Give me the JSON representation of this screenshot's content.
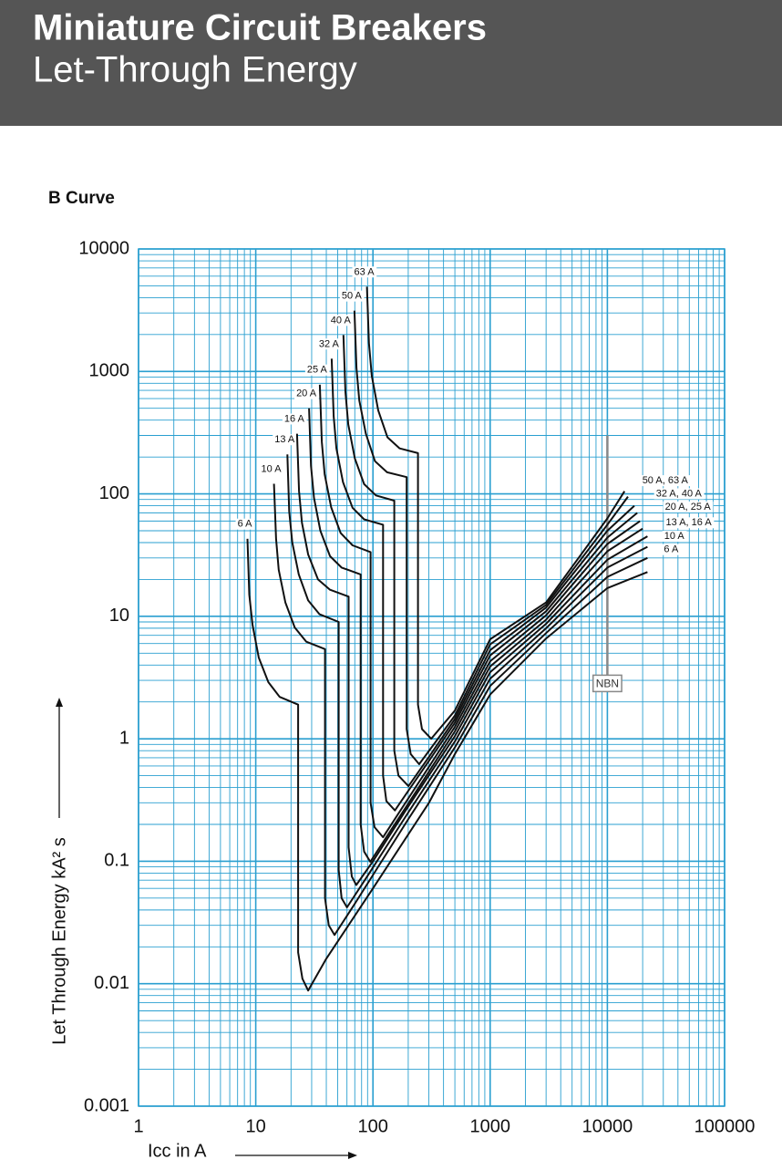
{
  "header": {
    "title": "Miniature Circuit Breakers",
    "subtitle": "Let-Through Energy"
  },
  "chart_data": {
    "type": "line",
    "title": "B Curve",
    "x_label": "Icc in A",
    "y_label": "Let Through Energy   kA² s",
    "x_scale": "log",
    "y_scale": "log",
    "grid": true,
    "minor_grid": true,
    "grid_color": "#2a9fd0",
    "line_color": "#111111",
    "xlim": [
      1,
      100000
    ],
    "xticks": [
      1,
      10,
      100,
      1000,
      10000,
      100000
    ],
    "ylim": [
      0.001,
      10000
    ],
    "yticks": [
      0.001,
      0.01,
      0.1,
      1,
      10,
      100,
      1000,
      10000
    ],
    "series": [
      {
        "name": "6 A",
        "x": [
          8.5,
          8.8,
          9.4,
          10.6,
          12.8,
          16,
          23,
          23,
          25,
          28,
          40,
          100,
          300,
          500,
          1000,
          3000,
          10000,
          22000
        ],
        "values": [
          43,
          15,
          8.5,
          4.6,
          2.9,
          2.2,
          1.9,
          0.018,
          0.011,
          0.0088,
          0.016,
          0.06,
          0.3,
          0.75,
          2.3,
          6.6,
          17,
          23
        ]
      },
      {
        "name": "10 A",
        "x": [
          14.3,
          14.9,
          15.7,
          17.9,
          21.5,
          27,
          39,
          39,
          42,
          47,
          70,
          200,
          500,
          1000,
          3000,
          10000,
          22000
        ],
        "values": [
          121,
          43,
          24,
          13,
          8.1,
          6.2,
          5.4,
          0.05,
          0.03,
          0.025,
          0.045,
          0.22,
          0.85,
          2.7,
          7.3,
          21,
          30
        ]
      },
      {
        "name": "13 A",
        "x": [
          18.6,
          19.3,
          20.5,
          23.3,
          28,
          35,
          51,
          51,
          54,
          60,
          90,
          200,
          500,
          1000,
          3000,
          10000,
          22000
        ],
        "values": [
          210,
          72,
          40,
          22,
          13.5,
          10.4,
          9,
          0.085,
          0.05,
          0.042,
          0.076,
          0.25,
          0.95,
          3.1,
          8,
          25,
          37
        ]
      },
      {
        "name": "16 A",
        "x": [
          22.5,
          23.4,
          24.8,
          28,
          34,
          43,
          62,
          62,
          66,
          72,
          100,
          200,
          500,
          1000,
          3000,
          10000,
          22000
        ],
        "values": [
          310,
          105,
          58,
          32,
          20,
          16.5,
          14.5,
          0.13,
          0.075,
          0.064,
          0.1,
          0.28,
          1.05,
          3.5,
          8.7,
          29,
          45
        ]
      },
      {
        "name": "20 A",
        "x": [
          28.5,
          29.6,
          31.4,
          35.6,
          43,
          54,
          78.5,
          78.5,
          84,
          95,
          130,
          250,
          500,
          1000,
          3000,
          10000,
          20000
        ],
        "values": [
          500,
          170,
          93,
          50,
          31,
          25,
          22,
          0.2,
          0.12,
          0.099,
          0.157,
          0.41,
          1.15,
          3.9,
          9.4,
          34,
          52
        ]
      },
      {
        "name": "25 A",
        "x": [
          35.2,
          36.6,
          38.7,
          44,
          53,
          67,
          95.5,
          95.5,
          103,
          122,
          160,
          300,
          500,
          1000,
          3000,
          10000,
          19000
        ],
        "values": [
          780,
          265,
          145,
          78,
          48,
          38,
          33.5,
          0.3,
          0.19,
          0.157,
          0.234,
          0.59,
          1.25,
          4.3,
          10.2,
          39,
          60
        ]
      },
      {
        "name": "32 A",
        "x": [
          44.4,
          46.2,
          48.8,
          55.5,
          67,
          84,
          122,
          122,
          130,
          154,
          200,
          300,
          500,
          1000,
          3000,
          10000,
          18000
        ],
        "values": [
          1270,
          430,
          235,
          125,
          77,
          62,
          56,
          0.5,
          0.31,
          0.26,
          0.375,
          0.66,
          1.35,
          4.8,
          11,
          44,
          70
        ]
      },
      {
        "name": "40 A",
        "x": [
          56,
          58.2,
          61.6,
          70,
          84,
          106,
          152,
          152,
          165,
          201,
          300,
          500,
          1000,
          3000,
          10000,
          17000
        ],
        "values": [
          1980,
          680,
          370,
          195,
          120,
          97,
          88,
          0.8,
          0.5,
          0.41,
          0.71,
          1.45,
          5.3,
          11.8,
          50,
          80
        ]
      },
      {
        "name": "50 A",
        "x": [
          69.5,
          72.3,
          76.5,
          87,
          104,
          132,
          194,
          194,
          210,
          248,
          350,
          500,
          1000,
          3000,
          10000,
          15000
        ],
        "values": [
          3130,
          1070,
          580,
          310,
          185,
          150,
          137,
          1.2,
          0.75,
          0.62,
          0.97,
          1.55,
          5.9,
          12.4,
          56,
          95
        ]
      },
      {
        "name": "63 A",
        "x": [
          88.8,
          92.4,
          97.7,
          111,
          133,
          169,
          242,
          242,
          262,
          314,
          500,
          1000,
          3000,
          10000,
          14000
        ],
        "values": [
          4920,
          1700,
          920,
          480,
          290,
          235,
          215,
          1.9,
          1.2,
          1.0,
          1.7,
          6.5,
          13,
          63,
          105
        ]
      }
    ],
    "annotations": [
      {
        "text": "50 A, 63 A",
        "x": 31100,
        "y": 128
      },
      {
        "text": "32 A, 40 A",
        "x": 40700,
        "y": 100
      },
      {
        "text": "20 A, 25 A",
        "x": 48600,
        "y": 78
      },
      {
        "text": "13 A, 16 A",
        "x": 49400,
        "y": 58
      },
      {
        "text": "10 A",
        "x": 37200,
        "y": 45
      },
      {
        "text": "6 A",
        "x": 35000,
        "y": 35
      }
    ],
    "reference_line": {
      "label": "NBN",
      "x": 10000,
      "y_top": 300,
      "y_bottom": 2.7,
      "color": "#888888"
    }
  }
}
